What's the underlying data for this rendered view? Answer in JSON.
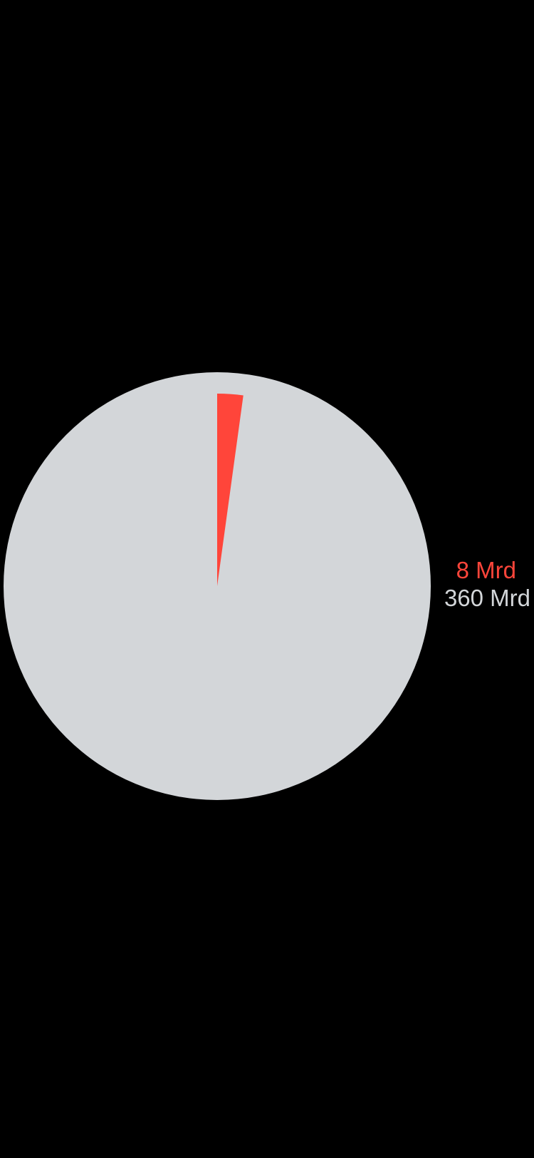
{
  "chart_data": {
    "type": "pie",
    "series": [
      {
        "value": 8,
        "label": "8 Mrd",
        "color": "#FF453A"
      },
      {
        "value": 360,
        "label": "360 Mrd",
        "color": "#D3D6D9"
      }
    ],
    "background": "#000000",
    "legend_position": "right"
  }
}
